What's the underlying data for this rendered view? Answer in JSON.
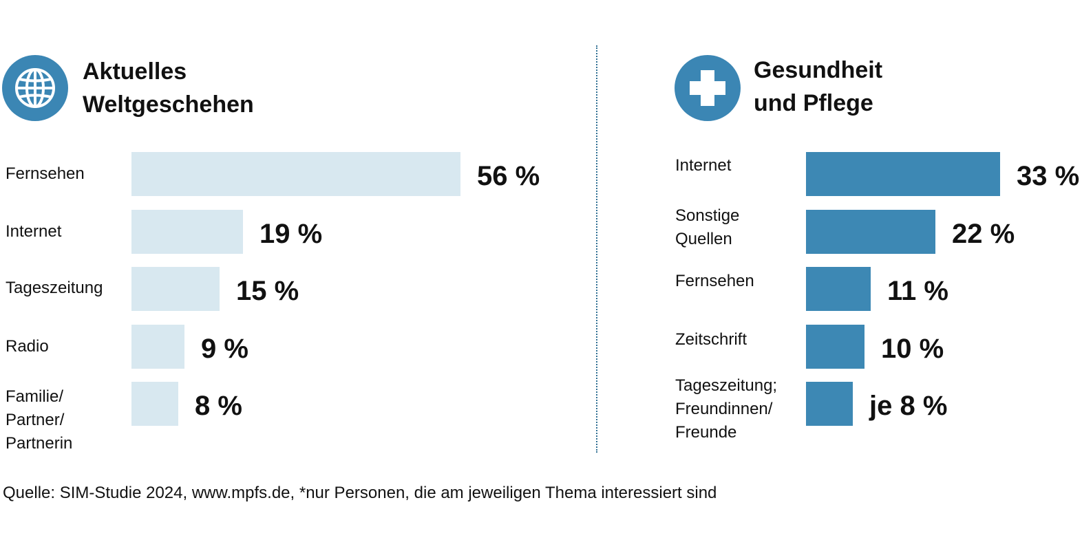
{
  "colors": {
    "icon_circle": "#3b86b4",
    "left_bars": "#d8e8f0",
    "right_bars": "#3d88b4",
    "divider": "#2f6f93"
  },
  "chart_data": [
    {
      "type": "bar",
      "orientation": "horizontal",
      "icon": "globe-icon",
      "title": [
        "Aktuelles",
        "Weltgeschehen"
      ],
      "categories": [
        [
          "Fernsehen"
        ],
        [
          "Internet"
        ],
        [
          "Tageszeitung"
        ],
        [
          "Radio"
        ],
        [
          "Familie/",
          "Partner/",
          "Partnerin"
        ]
      ],
      "values": [
        56,
        19,
        15,
        9,
        8
      ],
      "value_labels": [
        "56 %",
        "19 %",
        "15 %",
        "9 %",
        "8 %"
      ],
      "xlim": [
        0,
        56
      ],
      "grid": false,
      "legend": "none"
    },
    {
      "type": "bar",
      "orientation": "horizontal",
      "icon": "medical-cross-icon",
      "title": [
        "Gesundheit",
        "und Pflege"
      ],
      "categories": [
        [
          "Internet"
        ],
        [
          "Sonstige",
          "Quellen"
        ],
        [
          "Fernsehen"
        ],
        [
          "Zeitschrift"
        ],
        [
          "Tageszeitung;",
          "Freundinnen/",
          "Freunde"
        ]
      ],
      "values": [
        33,
        22,
        11,
        10,
        8
      ],
      "value_labels": [
        "33 %",
        "22 %",
        "11 %",
        "10 %",
        "je 8 %"
      ],
      "xlim": [
        0,
        56
      ],
      "grid": false,
      "legend": "none"
    }
  ],
  "source": "Quelle: SIM-Studie 2024, www.mpfs.de, *nur Personen, die am jeweiligen Thema interessiert sind"
}
